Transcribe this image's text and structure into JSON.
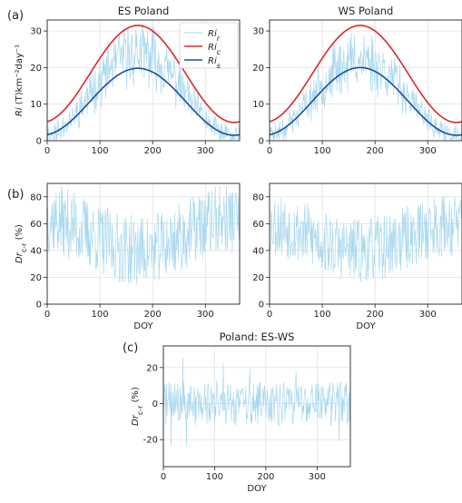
{
  "figure": {
    "panel_labels": [
      "(a)",
      "(b)",
      "(c)"
    ]
  },
  "colors": {
    "ri_r": "#a9d8ee",
    "ri_c": "#e0262b",
    "ri_s": "#1f4e96",
    "dr": "#a9d8ee",
    "grid": "#d9d9d9"
  },
  "chart_data": [
    {
      "id": "a_es",
      "type": "line",
      "title": "ES Poland",
      "xlabel": "",
      "ylabel": "Ri (T)km⁻²day⁻¹",
      "xlim": [
        0,
        365
      ],
      "ylim": [
        0,
        33
      ],
      "xticks": [
        0,
        100,
        200,
        300
      ],
      "yticks": [
        0,
        10,
        20,
        30
      ],
      "legend": {
        "position": "top-right",
        "entries": [
          "Ri_r",
          "Ri_c",
          "Ri_s"
        ]
      },
      "series": [
        {
          "name": "Ri_r",
          "kind": "noisy",
          "min": 1.5,
          "max": 30,
          "noise": 6,
          "seed": 11
        },
        {
          "name": "Ri_c",
          "kind": "seasonal",
          "min": 5,
          "max": 31.5,
          "peak_doy": 172
        },
        {
          "name": "Ri_s",
          "kind": "seasonal",
          "min": 1.5,
          "max": 19.8,
          "peak_doy": 172
        }
      ]
    },
    {
      "id": "a_ws",
      "type": "line",
      "title": "WS Poland",
      "xlabel": "",
      "ylabel": "",
      "xlim": [
        0,
        365
      ],
      "ylim": [
        0,
        33
      ],
      "xticks": [
        0,
        100,
        200,
        300
      ],
      "yticks": [
        0,
        10,
        20,
        30
      ],
      "series": [
        {
          "name": "Ri_r",
          "kind": "noisy",
          "min": 1.5,
          "max": 28,
          "noise": 6,
          "seed": 23
        },
        {
          "name": "Ri_c",
          "kind": "seasonal",
          "min": 5,
          "max": 31.5,
          "peak_doy": 172
        },
        {
          "name": "Ri_s",
          "kind": "seasonal",
          "min": 1.5,
          "max": 20,
          "peak_doy": 172
        }
      ]
    },
    {
      "id": "b_es",
      "type": "line",
      "title": "",
      "xlabel": "DOY",
      "ylabel": "Dr_{c-r} (%)",
      "xlim": [
        0,
        365
      ],
      "ylim": [
        0,
        90
      ],
      "xticks": [
        0,
        100,
        200,
        300
      ],
      "yticks": [
        0,
        20,
        40,
        60,
        80
      ],
      "series": [
        {
          "name": "Dr",
          "kind": "dr",
          "base": 50,
          "amp": 30,
          "noise": 22,
          "seed": 37
        }
      ]
    },
    {
      "id": "b_ws",
      "type": "line",
      "title": "",
      "xlabel": "DOY",
      "ylabel": "",
      "xlim": [
        0,
        365
      ],
      "ylim": [
        0,
        90
      ],
      "xticks": [
        0,
        100,
        200,
        300
      ],
      "yticks": [
        0,
        20,
        40,
        60,
        80
      ],
      "series": [
        {
          "name": "Dr",
          "kind": "dr",
          "base": 50,
          "amp": 25,
          "noise": 20,
          "seed": 53
        }
      ]
    },
    {
      "id": "c",
      "type": "line",
      "title": "Poland: ES-WS",
      "xlabel": "DOY",
      "ylabel": "Dr_{c-r} (%)",
      "xlim": [
        0,
        365
      ],
      "ylim": [
        -35,
        32
      ],
      "xticks": [
        0,
        100,
        200,
        300
      ],
      "yticks": [
        -20,
        0,
        20
      ],
      "series": [
        {
          "name": "diff",
          "kind": "diff",
          "noise": 12,
          "seed": 71
        }
      ]
    }
  ]
}
